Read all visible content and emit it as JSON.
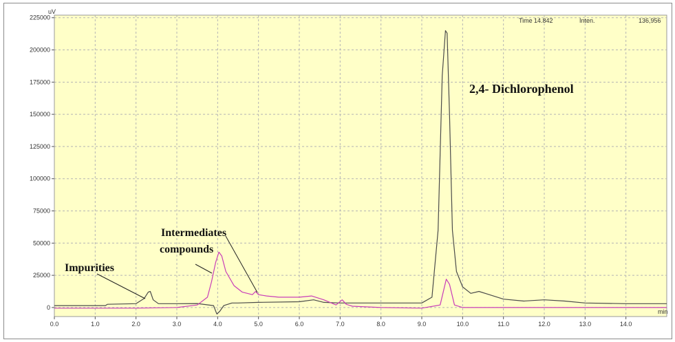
{
  "chart_data": {
    "type": "line",
    "y_unit": "uV",
    "x_unit": "min",
    "xlim": [
      0,
      15.0
    ],
    "ylim": [
      -7000,
      227000
    ],
    "x_ticks": [
      "0.0",
      "1.0",
      "2.0",
      "3.0",
      "4.0",
      "5.0",
      "6.0",
      "7.0",
      "8.0",
      "9.0",
      "10.0",
      "11.0",
      "12.0",
      "13.0",
      "14.0"
    ],
    "y_ticks": [
      "0",
      "25000",
      "50000",
      "75000",
      "100000",
      "125000",
      "150000",
      "175000",
      "200000",
      "225000"
    ],
    "grid": true,
    "readout": {
      "time_label": "Time",
      "time_value": "14.842",
      "inten_label": "Inten.",
      "inten_value": "136,956"
    },
    "annotations": [
      {
        "text": "2,4- Dichlorophenol",
        "points_to_x": 9.6,
        "points_to_y": 215000
      },
      {
        "text": "Intermediates",
        "points_to_x": 4.05,
        "points_to_y": 42000
      },
      {
        "text": "compounds",
        "points_to_x": 3.85,
        "points_to_y": 25000
      },
      {
        "text": "Impurities",
        "points_to_x": 2.2,
        "points_to_y": 9000
      }
    ],
    "series": [
      {
        "color": "#4a4a4a",
        "x": [
          0.0,
          1.25,
          1.3,
          2.0,
          2.2,
          2.3,
          2.35,
          2.42,
          2.55,
          3.0,
          3.5,
          3.9,
          3.98,
          4.05,
          4.15,
          4.35,
          4.5,
          5.0,
          6.0,
          6.35,
          6.6,
          7.0,
          8.0,
          9.0,
          9.25,
          9.4,
          9.5,
          9.58,
          9.62,
          9.68,
          9.75,
          9.85,
          10.0,
          10.2,
          10.4,
          10.6,
          11.0,
          11.5,
          12.0,
          12.5,
          13.0,
          14.0,
          15.0
        ],
        "y": [
          1500,
          1500,
          2500,
          3000,
          7000,
          12000,
          12500,
          6000,
          3000,
          3000,
          3100,
          1500,
          -5000,
          -3000,
          1500,
          3500,
          3500,
          4000,
          4500,
          6000,
          4000,
          3500,
          3500,
          3500,
          8000,
          60000,
          180000,
          215000,
          213000,
          150000,
          60000,
          28000,
          16000,
          11000,
          12500,
          10500,
          6500,
          5000,
          6000,
          5000,
          3500,
          3000,
          3000
        ]
      },
      {
        "color": "#c83cb8",
        "x": [
          0.0,
          2.0,
          3.0,
          3.5,
          3.75,
          3.85,
          3.95,
          4.03,
          4.1,
          4.2,
          4.4,
          4.6,
          4.85,
          4.93,
          5.0,
          5.2,
          5.5,
          6.0,
          6.3,
          6.6,
          6.9,
          7.05,
          7.15,
          7.3,
          8.0,
          9.0,
          9.45,
          9.6,
          9.68,
          9.8,
          10.0,
          11.0,
          12.0,
          13.0,
          14.0,
          15.0
        ],
        "y": [
          -500,
          -500,
          0,
          2000,
          8000,
          20000,
          35000,
          43000,
          40000,
          28000,
          17000,
          12000,
          10000,
          12500,
          10000,
          9000,
          8000,
          8000,
          9000,
          6000,
          2000,
          6000,
          2500,
          1000,
          0,
          -500,
          2000,
          22000,
          18000,
          2000,
          0,
          0,
          0,
          0,
          0,
          0
        ]
      }
    ]
  }
}
